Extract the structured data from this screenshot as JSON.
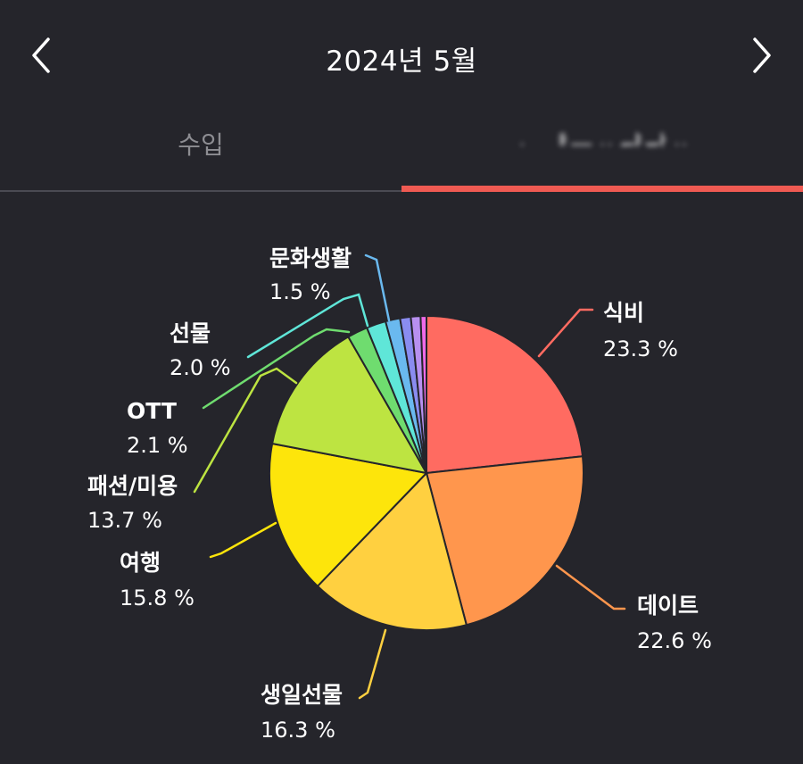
{
  "header": {
    "title": "2024년 5월",
    "prev_icon": "chevron-left-icon",
    "next_icon": "chevron-right-icon"
  },
  "tabs": [
    {
      "label": "수입",
      "active": false
    },
    {
      "label": "ᆞ ᆘᅳᆢᆄᆎᆢ",
      "active": true,
      "blurred": true
    }
  ],
  "colors": {
    "background": "#25252b",
    "accent": "#ef5a52",
    "inactive_tab": "#8d8d92"
  },
  "chart_data": {
    "type": "pie",
    "slices": [
      {
        "label": "식비",
        "value": 23.3,
        "display": "23.3 %",
        "color": "#ff6b61"
      },
      {
        "label": "데이트",
        "value": 22.6,
        "display": "22.6 %",
        "color": "#ff964d"
      },
      {
        "label": "생일선물",
        "value": 16.3,
        "display": "16.3 %",
        "color": "#ffd040"
      },
      {
        "label": "여행",
        "value": 15.8,
        "display": "15.8 %",
        "color": "#fde50b"
      },
      {
        "label": "패션/미용",
        "value": 13.7,
        "display": "13.7 %",
        "color": "#bde441"
      },
      {
        "label": "OTT",
        "value": 2.1,
        "display": "2.1 %",
        "color": "#6fdc6f"
      },
      {
        "label": "선물",
        "value": 2.0,
        "display": "2.0 %",
        "color": "#5fe6d8"
      },
      {
        "label": "문화생활",
        "value": 1.5,
        "display": "1.5 %",
        "color": "#6ab9ef"
      },
      {
        "value": 1.1,
        "color": "#8a8cf0"
      },
      {
        "value": 1.0,
        "color": "#b890f0"
      },
      {
        "value": 0.6,
        "color": "#ee6ae8"
      }
    ]
  }
}
